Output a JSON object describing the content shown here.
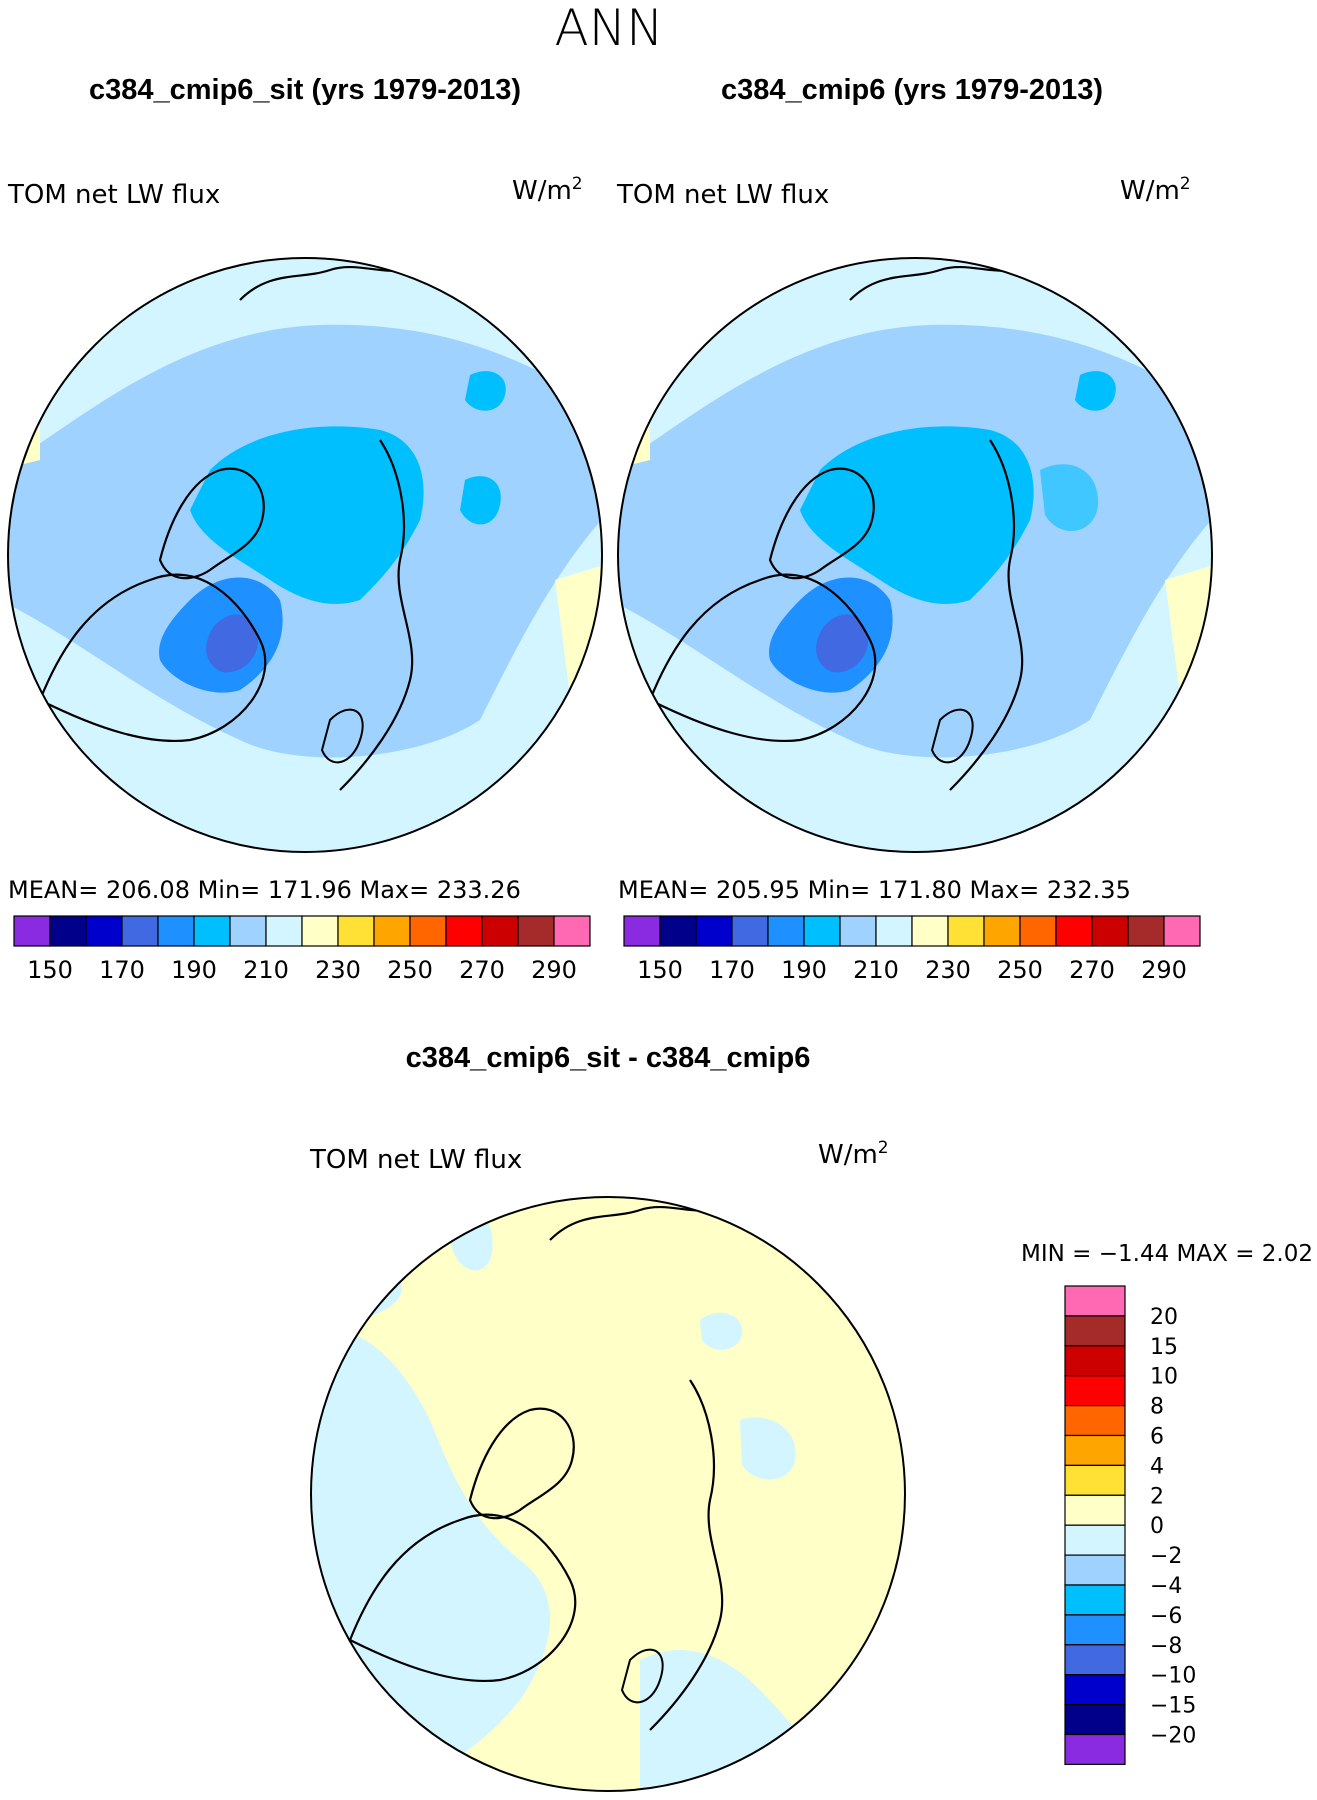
{
  "page": {
    "title": "ANN"
  },
  "panels": [
    {
      "id": "left",
      "case_title": "c384_cmip6_sit (yrs 1979-2013)",
      "var_label": "TOM net LW flux",
      "units_base": "W/m",
      "units_exp": "2",
      "stats": "MEAN= 206.08   Min= 171.96   Max= 233.26",
      "colorbar_ticks": [
        "150",
        "170",
        "190",
        "210",
        "230",
        "250",
        "270",
        "290"
      ]
    },
    {
      "id": "right",
      "case_title": "c384_cmip6 (yrs 1979-2013)",
      "var_label": "TOM net LW flux",
      "units_base": "W/m",
      "units_exp": "2",
      "stats": "MEAN= 205.95   Min= 171.80   Max= 232.35",
      "colorbar_ticks": [
        "150",
        "170",
        "190",
        "210",
        "230",
        "250",
        "270",
        "290"
      ]
    }
  ],
  "diff_panel": {
    "title": "c384_cmip6_sit - c384_cmip6",
    "var_label": "TOM net LW flux",
    "units_base": "W/m",
    "units_exp": "2",
    "minmax": "MIN =   −1.44 MAX =     2.02",
    "colorbar_labels": [
      "20",
      "15",
      "10",
      "8",
      "6",
      "4",
      "2",
      "0",
      "−2",
      "−4",
      "−6",
      "−8",
      "−10",
      "−15",
      "−20"
    ]
  },
  "colors": {
    "abs_scale": [
      "#8a2be2",
      "#00008b",
      "#0000cd",
      "#4169e1",
      "#1e90ff",
      "#00bfff",
      "#a0d2ff",
      "#d2f5ff",
      "#ffffc8",
      "#ffe135",
      "#ffa500",
      "#ff6600",
      "#ff0000",
      "#cd0000",
      "#a52a2a",
      "#ff69b4"
    ],
    "diff_scale": [
      "#ff69b4",
      "#a52a2a",
      "#cd0000",
      "#ff0000",
      "#ff6600",
      "#ffa500",
      "#ffe135",
      "#ffffc8",
      "#d2f5ff",
      "#a0d2ff",
      "#00bfff",
      "#1e90ff",
      "#4169e1",
      "#0000cd",
      "#00008b",
      "#8a2be2"
    ]
  },
  "chart_data": [
    {
      "type": "heatmap",
      "title": "c384_cmip6_sit (yrs 1979-2013)",
      "variable": "TOM net LW flux",
      "units": "W/m2",
      "projection": "north polar stereographic",
      "levels": [
        150,
        160,
        170,
        180,
        190,
        200,
        210,
        220,
        230,
        240,
        250,
        260,
        270,
        280,
        290
      ],
      "mean": 206.08,
      "min": 171.96,
      "max": 233.26
    },
    {
      "type": "heatmap",
      "title": "c384_cmip6 (yrs 1979-2013)",
      "variable": "TOM net LW flux",
      "units": "W/m2",
      "projection": "north polar stereographic",
      "levels": [
        150,
        160,
        170,
        180,
        190,
        200,
        210,
        220,
        230,
        240,
        250,
        260,
        270,
        280,
        290
      ],
      "mean": 205.95,
      "min": 171.8,
      "max": 232.35
    },
    {
      "type": "heatmap",
      "title": "c384_cmip6_sit - c384_cmip6",
      "variable": "TOM net LW flux",
      "units": "W/m2",
      "projection": "north polar stereographic",
      "levels": [
        -20,
        -15,
        -10,
        -8,
        -6,
        -4,
        -2,
        0,
        2,
        4,
        6,
        8,
        10,
        15,
        20
      ],
      "min": -1.44,
      "max": 2.02
    }
  ]
}
